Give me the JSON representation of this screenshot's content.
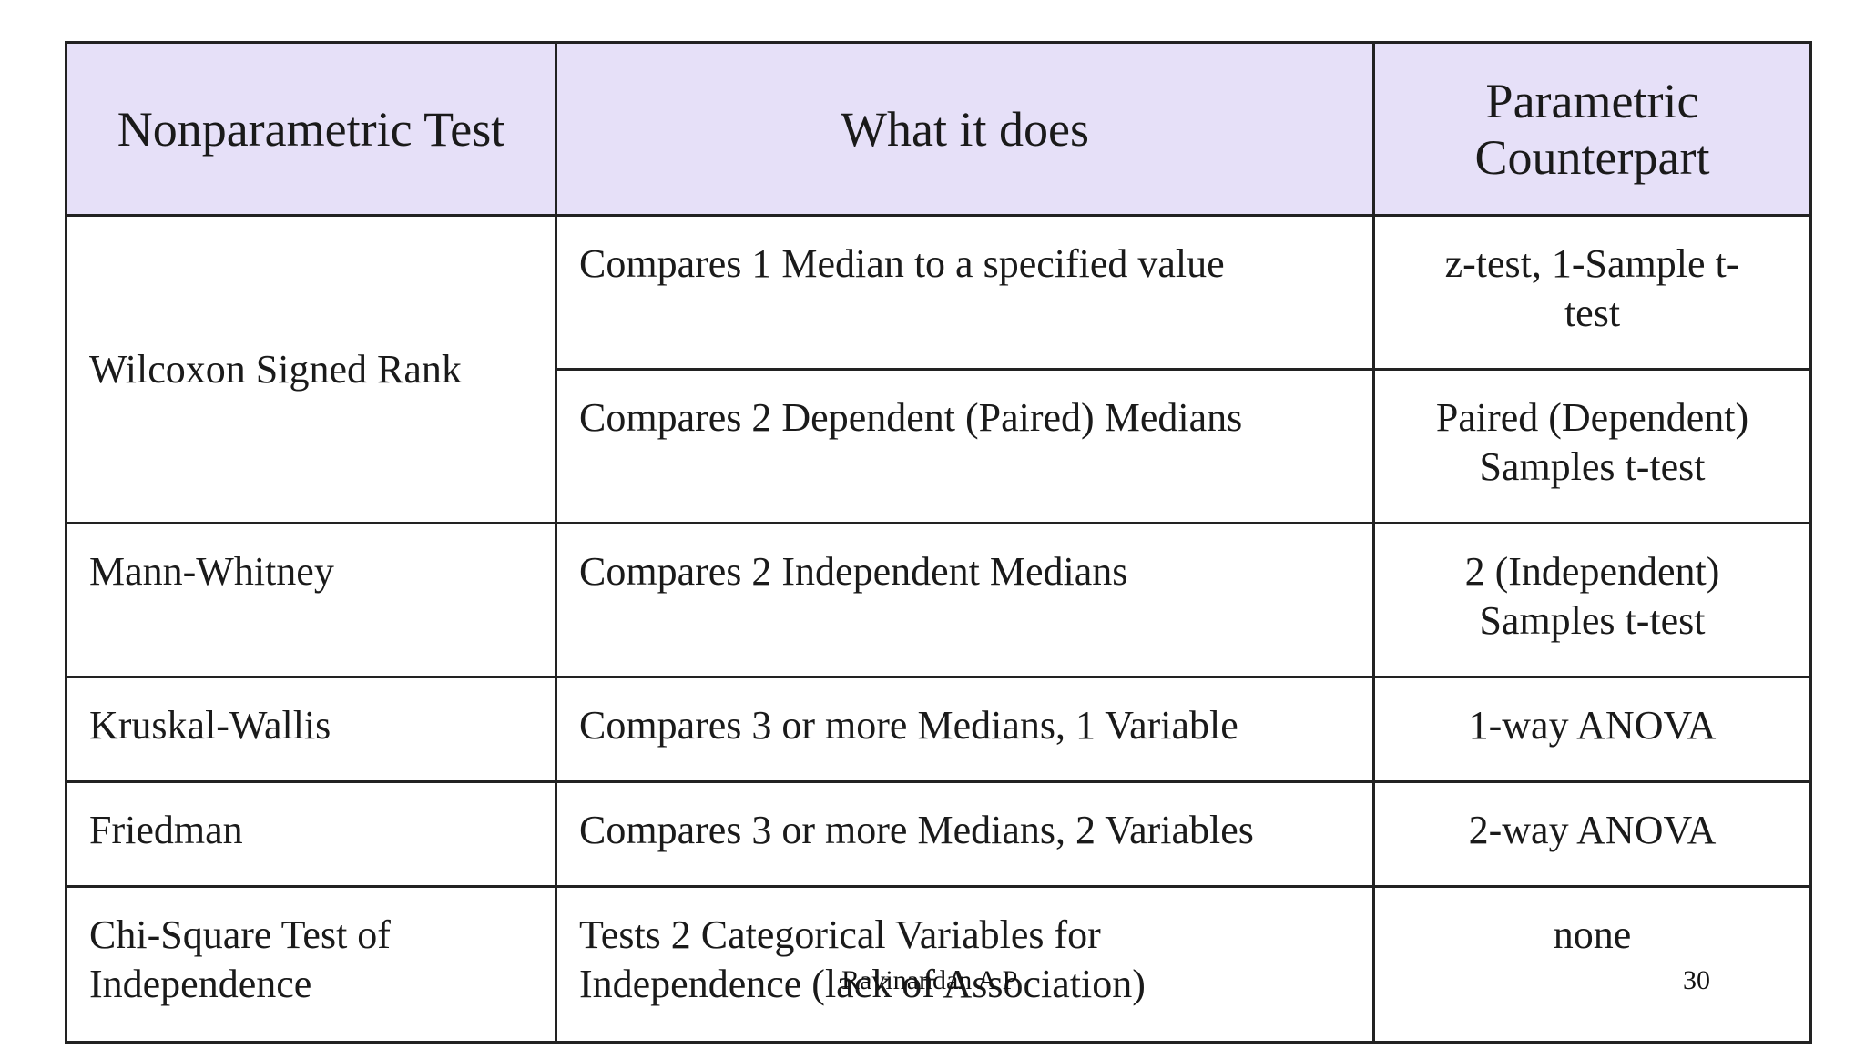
{
  "table": {
    "headers": [
      "Nonparametric Test",
      "What it does",
      "Parametric Counterpart"
    ],
    "rows": [
      {
        "test": "Wilcoxon Signed Rank",
        "entries": [
          {
            "does": "Compares 1 Median to a specified value",
            "counterpart": "z-test, 1-Sample t-test"
          },
          {
            "does": "Compares 2 Dependent (Paired) Medians",
            "counterpart": "Paired (Dependent) Samples t-test"
          }
        ]
      },
      {
        "test": "Mann-Whitney",
        "does": "Compares 2 Independent Medians",
        "counterpart": "2 (Independent) Samples t-test"
      },
      {
        "test": "Kruskal-Wallis",
        "does": "Compares 3 or more Medians, 1 Variable",
        "counterpart": "1-way ANOVA"
      },
      {
        "test": "Friedman",
        "does": "Compares 3 or more Medians, 2 Variables",
        "counterpart": "2-way ANOVA"
      },
      {
        "test": "Chi-Square Test of Independence",
        "does": "Tests 2 Categorical Variables for Independence (lack of Association)",
        "counterpart": "none"
      }
    ]
  },
  "footer": {
    "author": "Ravinandan A P",
    "page_number": "30"
  },
  "colors": {
    "header_background": "#e6e0f8",
    "border": "#222222"
  }
}
